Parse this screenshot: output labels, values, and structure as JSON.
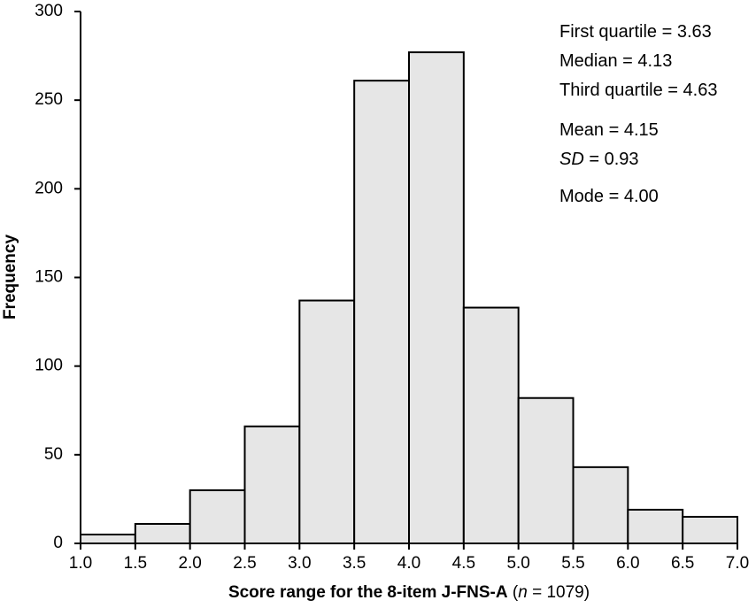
{
  "chart_data": {
    "type": "histogram",
    "xlabel": [
      "Score range for the 8-item J-FNS-A",
      " (",
      "n",
      " = 1079)"
    ],
    "ylabel": "Frequency",
    "bins": [
      1.0,
      1.5,
      2.0,
      2.5,
      3.0,
      3.5,
      4.0,
      4.5,
      5.0,
      5.5,
      6.0,
      6.5,
      7.0
    ],
    "counts": [
      5,
      11,
      30,
      66,
      137,
      261,
      277,
      133,
      82,
      43,
      19,
      15
    ],
    "color": "#e6e6e6",
    "xlim": [
      1.0,
      7.0
    ],
    "xticks": [
      {
        "value": 1.0,
        "label": "1.0"
      },
      {
        "value": 1.5,
        "label": "1.5"
      },
      {
        "value": 2.0,
        "label": "2.0"
      },
      {
        "value": 2.5,
        "label": "2.5"
      },
      {
        "value": 3.0,
        "label": "3.0"
      },
      {
        "value": 3.5,
        "label": "3.5"
      },
      {
        "value": 4.0,
        "label": "4.0"
      },
      {
        "value": 4.5,
        "label": "4.5"
      },
      {
        "value": 5.0,
        "label": "5.0"
      },
      {
        "value": 5.5,
        "label": "5.5"
      },
      {
        "value": 6.0,
        "label": "6.0"
      },
      {
        "value": 6.5,
        "label": "6.5"
      },
      {
        "value": 7.0,
        "label": "7.0"
      }
    ],
    "ylim": [
      0,
      300
    ],
    "yticks": [
      0,
      50,
      100,
      150,
      200,
      250,
      300
    ],
    "grid": false,
    "annotations": [
      [
        "First quartile = 3.63"
      ],
      [
        "Median = 4.13"
      ],
      [
        "Third quartile = 4.63"
      ],
      [
        "Mean = 4.15"
      ],
      [
        "SD",
        " = 0.93"
      ],
      [
        "Mode = 4.00"
      ]
    ]
  }
}
